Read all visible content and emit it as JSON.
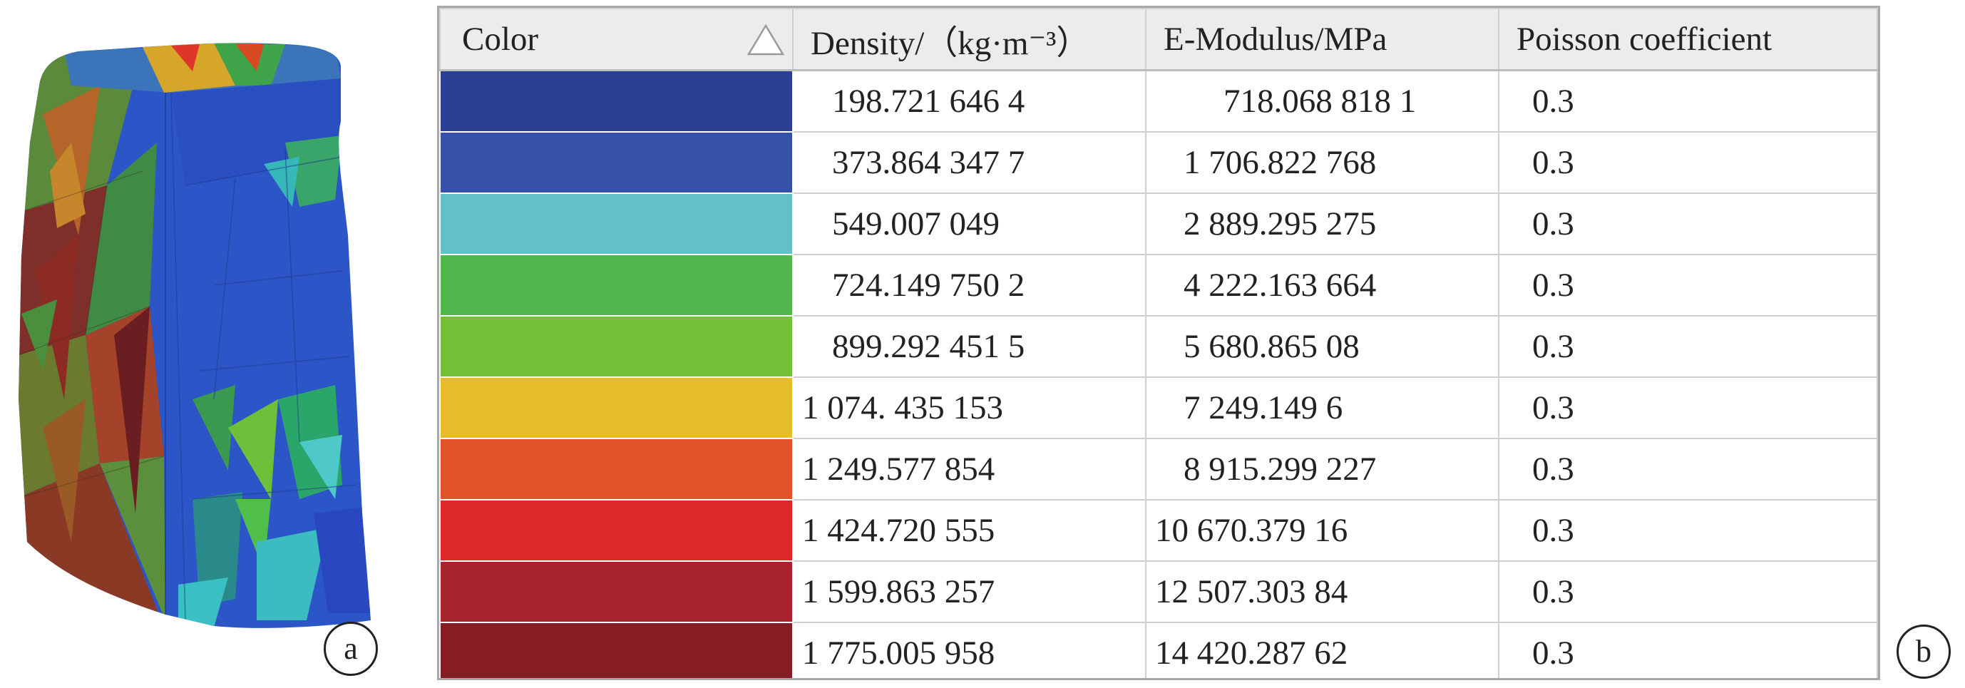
{
  "panels": {
    "a_label": "a",
    "b_label": "b"
  },
  "table": {
    "headers": {
      "color": "Color",
      "density": "Density/（kg·m⁻³）",
      "modulus": "E-Modulus/MPa",
      "poisson": "Poisson coefficient"
    },
    "sort_icon": "sort-ascending-triangle-icon",
    "rows": [
      {
        "color": "#2a3f94",
        "density": "198.721 646 4",
        "modulus": "718.068 818 1",
        "poisson": "0.3"
      },
      {
        "color": "#3552a8",
        "density": "373.864 347 7",
        "modulus": "1 706.822 768",
        "poisson": "0.3"
      },
      {
        "color": "#62c0c8",
        "density": "549.007 049",
        "modulus": "2 889.295 275",
        "poisson": "0.3"
      },
      {
        "color": "#4fb74e",
        "density": "724.149 750 2",
        "modulus": "4 222.163 664",
        "poisson": "0.3"
      },
      {
        "color": "#72bf38",
        "density": "899.292 451 5",
        "modulus": "5 680.865 08",
        "poisson": "0.3"
      },
      {
        "color": "#e7bc2c",
        "density": "1 074. 435 153",
        "modulus": "7 249.149 6",
        "poisson": "0.3"
      },
      {
        "color": "#e2532a",
        "density": "1 249.577 854",
        "modulus": "8 915.299 227",
        "poisson": "0.3"
      },
      {
        "color": "#dc2828",
        "density": "1 424.720 555",
        "modulus": "10 670.379 16",
        "poisson": "0.3"
      },
      {
        "color": "#a8222c",
        "density": "1 599.863 257",
        "modulus": "12 507.303 84",
        "poisson": "0.3"
      },
      {
        "color": "#861d25",
        "density": "1 775.005 958",
        "modulus": "14 420.287 62",
        "poisson": "0.3"
      }
    ]
  }
}
